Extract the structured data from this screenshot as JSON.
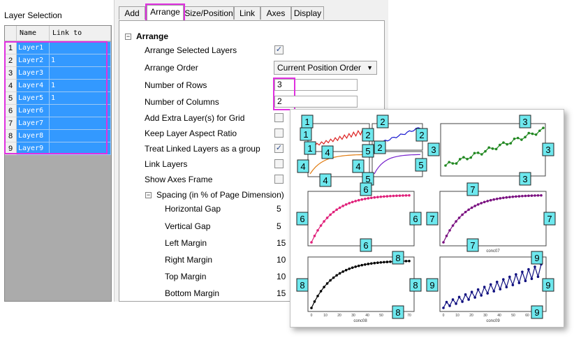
{
  "layer_selection": {
    "title": "Layer Selection",
    "columns": [
      "Name",
      "Link to"
    ],
    "rows": [
      {
        "num": "1",
        "name": "Layer1",
        "link": ""
      },
      {
        "num": "2",
        "name": "Layer2",
        "link": "1"
      },
      {
        "num": "3",
        "name": "Layer3",
        "link": ""
      },
      {
        "num": "4",
        "name": "Layer4",
        "link": "1"
      },
      {
        "num": "5",
        "name": "Layer5",
        "link": "1"
      },
      {
        "num": "6",
        "name": "Layer6",
        "link": ""
      },
      {
        "num": "7",
        "name": "Layer7",
        "link": ""
      },
      {
        "num": "8",
        "name": "Layer8",
        "link": ""
      },
      {
        "num": "9",
        "name": "Layer9",
        "link": ""
      }
    ]
  },
  "tabs": [
    "Add",
    "Arrange",
    "Size/Position",
    "Link",
    "Axes",
    "Display"
  ],
  "active_tab": "Arrange",
  "arrange": {
    "section": "Arrange",
    "arrange_selected_layers": {
      "label": "Arrange Selected Layers",
      "checked": true
    },
    "arrange_order": {
      "label": "Arrange Order",
      "value": "Current Position Order"
    },
    "number_of_rows": {
      "label": "Number of Rows",
      "value": "3"
    },
    "number_of_columns": {
      "label": "Number of Columns",
      "value": "2"
    },
    "add_extra_layers": {
      "label": "Add Extra Layer(s) for Grid",
      "checked": false
    },
    "keep_aspect": {
      "label": "Keep Layer Aspect Ratio",
      "checked": false
    },
    "treat_linked": {
      "label": "Treat Linked Layers as a group",
      "checked": true
    },
    "link_layers": {
      "label": "Link Layers",
      "checked": false
    },
    "show_axes_frame": {
      "label": "Show Axes Frame",
      "checked": false
    },
    "spacing": {
      "label": "Spacing (in % of Page Dimension)",
      "horizontal_gap": {
        "label": "Horizontal Gap",
        "value": "5"
      },
      "vertical_gap": {
        "label": "Vertical Gap",
        "value": "5"
      },
      "left_margin": {
        "label": "Left Margin",
        "value": "15"
      },
      "right_margin": {
        "label": "Right Margin",
        "value": "10"
      },
      "top_margin": {
        "label": "Top Margin",
        "value": "10"
      },
      "bottom_margin": {
        "label": "Bottom Margin",
        "value": "15"
      }
    }
  },
  "graph": {
    "colors": {
      "layer1": "#dd2222",
      "layer2": "#1a1ad0",
      "layer3": "#228822",
      "layer4": "#e07b10",
      "layer5": "#7722cc",
      "layer6": "#e0207a",
      "layer7": "#7a1080",
      "layer8": "#000000",
      "layer9": "#101080"
    },
    "axis_titles": {
      "layer7": "conc07",
      "layer8": "conc08",
      "layer9": "conc09"
    },
    "tick_labels_x": [
      "0",
      "10",
      "20",
      "30",
      "40",
      "50",
      "60",
      "70"
    ]
  }
}
